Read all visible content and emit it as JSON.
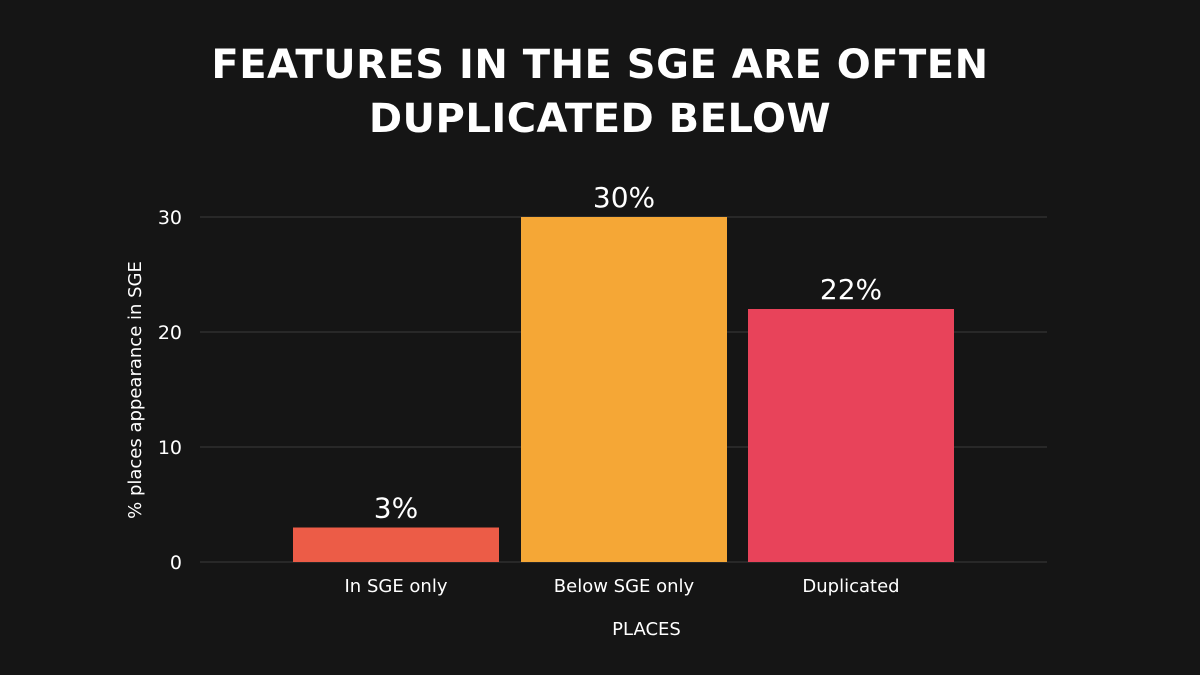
{
  "chart_data": {
    "type": "bar",
    "title_lines": [
      "FEATURES IN THE SGE ARE OFTEN",
      "DUPLICATED BELOW"
    ],
    "categories": [
      "In SGE only",
      "Below SGE only",
      "Duplicated"
    ],
    "values": [
      3,
      30,
      22
    ],
    "data_labels": [
      "3%",
      "30%",
      "22%"
    ],
    "colors": [
      "#ec5c47",
      "#f5a736",
      "#e8435a"
    ],
    "xlabel": "PLACES",
    "ylabel": "% places appearance in SGE",
    "ylim": [
      0,
      30
    ],
    "yticks": [
      0,
      10,
      20,
      30
    ],
    "grid": true,
    "background": "#151515"
  }
}
